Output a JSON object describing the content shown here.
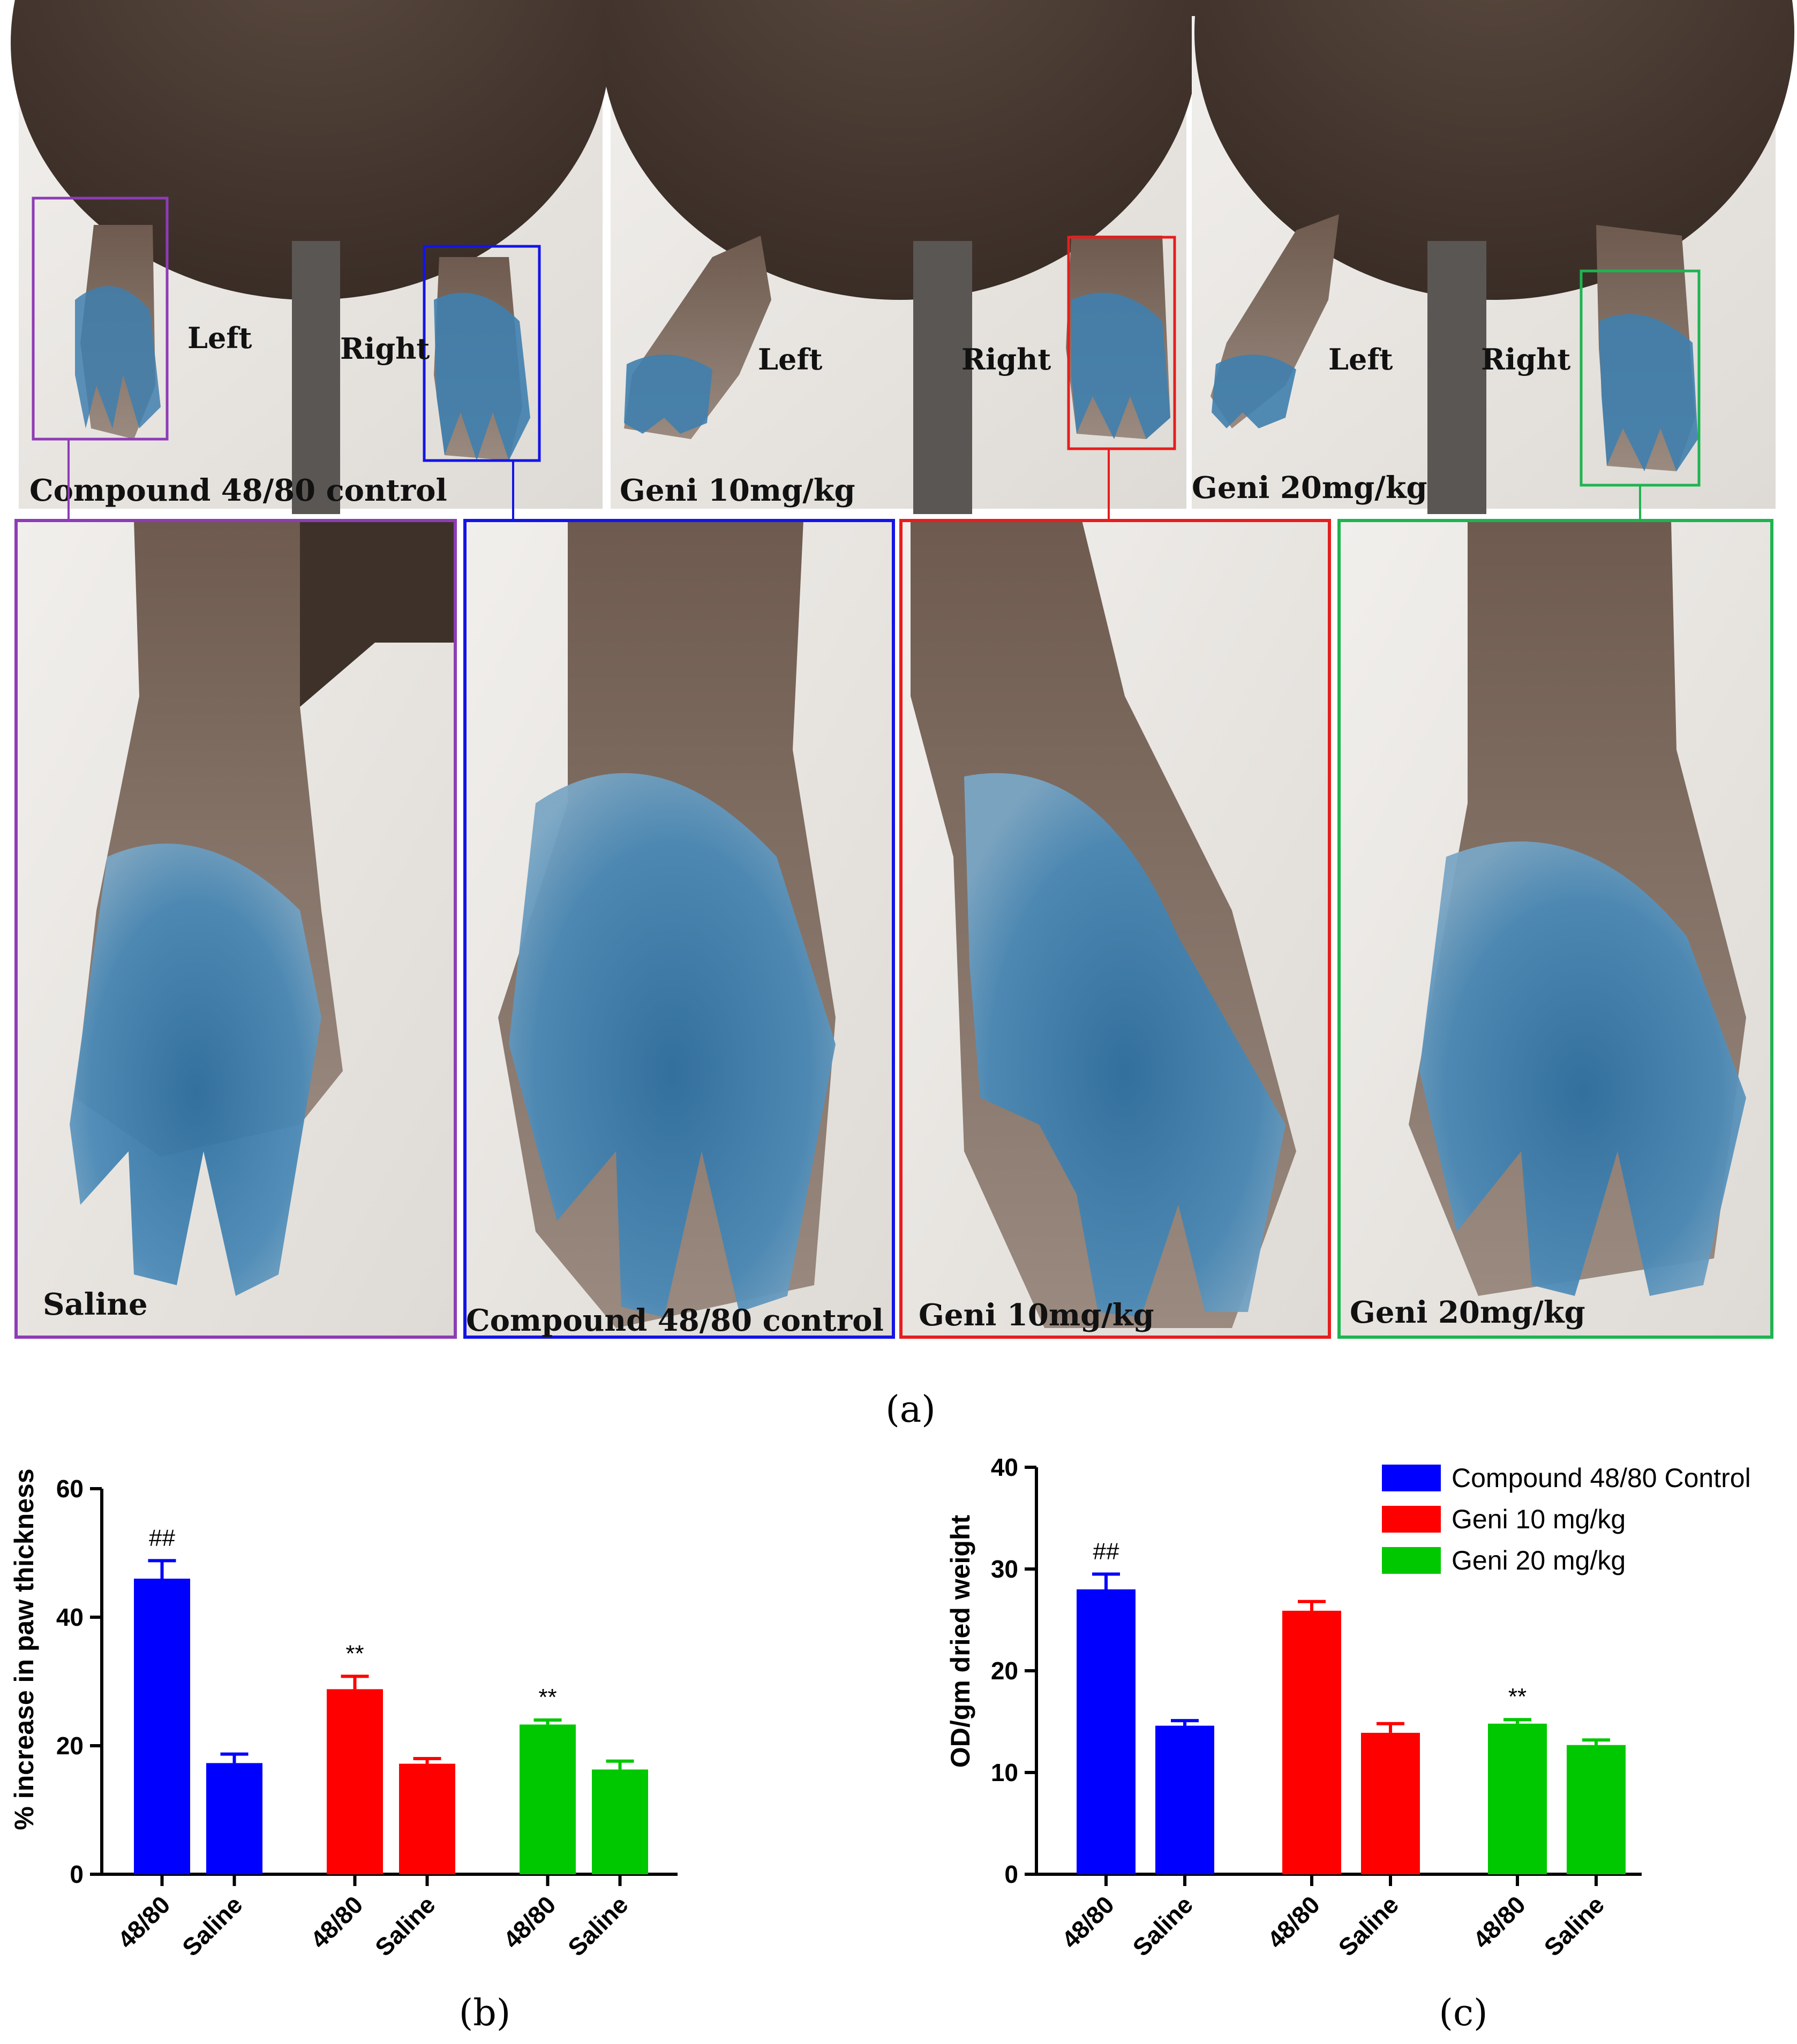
{
  "figure": {
    "panel_a": {
      "letter": "(a)",
      "top_photos": [
        {
          "caption": "Compound 48/80 control",
          "left_label": "Left",
          "right_label": "Right"
        },
        {
          "caption": "Geni 10mg/kg",
          "left_label": "Left",
          "right_label": "Right"
        },
        {
          "caption": "Geni 20mg/kg",
          "left_label": "Left",
          "right_label": "Right"
        }
      ],
      "zoom_photos": [
        {
          "caption": "Saline",
          "frame_color": "#8e3cb6"
        },
        {
          "caption": "Compound 48/80 control",
          "frame_color": "#1414e6"
        },
        {
          "caption": "Geni 10mg/kg",
          "frame_color": "#e61e1e"
        },
        {
          "caption": "Geni 20mg/kg",
          "frame_color": "#1eb450"
        }
      ],
      "colors": {
        "fur": "#4a3a31",
        "background": "#e9e6e2",
        "dye": "#3f7fae",
        "tail": "#5a5654"
      }
    },
    "panel_b": {
      "letter": "(b)"
    },
    "panel_c": {
      "letter": "(c)"
    }
  },
  "chart_data": [
    {
      "type": "bar",
      "panel": "(b)",
      "ylabel": "% increase in paw thickness",
      "xlabel": "",
      "ylim": [
        0,
        60
      ],
      "yticks": [
        0,
        20,
        40,
        60
      ],
      "categories": [
        "48/80",
        "Saline",
        "48/80",
        "Saline",
        "48/80",
        "Saline"
      ],
      "groups": [
        {
          "color": "#0000ff",
          "bars": [
            {
              "category": "48/80",
              "value": 46,
              "error": 2.8,
              "annotation": "##"
            },
            {
              "category": "Saline",
              "value": 17.3,
              "error": 1.4,
              "annotation": ""
            }
          ]
        },
        {
          "color": "#ff0000",
          "bars": [
            {
              "category": "48/80",
              "value": 28.8,
              "error": 2.0,
              "annotation": "**"
            },
            {
              "category": "Saline",
              "value": 17.2,
              "error": 0.8,
              "annotation": ""
            }
          ]
        },
        {
          "color": "#00c800",
          "bars": [
            {
              "category": "48/80",
              "value": 23.3,
              "error": 0.7,
              "annotation": "**"
            },
            {
              "category": "Saline",
              "value": 16.3,
              "error": 1.3,
              "annotation": ""
            }
          ]
        }
      ]
    },
    {
      "type": "bar",
      "panel": "(c)",
      "ylabel": "OD/gm dried weight",
      "xlabel": "",
      "ylim": [
        0,
        40
      ],
      "yticks": [
        0,
        10,
        20,
        30,
        40
      ],
      "categories": [
        "48/80",
        "Saline",
        "48/80",
        "Saline",
        "48/80",
        "Saline"
      ],
      "legend_position": "top-right",
      "series": [
        {
          "name": "Compound 48/80 Control",
          "color": "#0000ff"
        },
        {
          "name": "Geni 10 mg/kg",
          "color": "#ff0000"
        },
        {
          "name": "Geni 20 mg/kg",
          "color": "#00c800"
        }
      ],
      "groups": [
        {
          "color": "#0000ff",
          "bars": [
            {
              "category": "48/80",
              "value": 28.0,
              "error": 1.5,
              "annotation": "##"
            },
            {
              "category": "Saline",
              "value": 14.6,
              "error": 0.5,
              "annotation": ""
            }
          ]
        },
        {
          "color": "#ff0000",
          "bars": [
            {
              "category": "48/80",
              "value": 25.9,
              "error": 0.9,
              "annotation": ""
            },
            {
              "category": "Saline",
              "value": 13.9,
              "error": 0.9,
              "annotation": ""
            }
          ]
        },
        {
          "color": "#00c800",
          "bars": [
            {
              "category": "48/80",
              "value": 14.8,
              "error": 0.4,
              "annotation": "**"
            },
            {
              "category": "Saline",
              "value": 12.7,
              "error": 0.5,
              "annotation": ""
            }
          ]
        }
      ]
    }
  ]
}
